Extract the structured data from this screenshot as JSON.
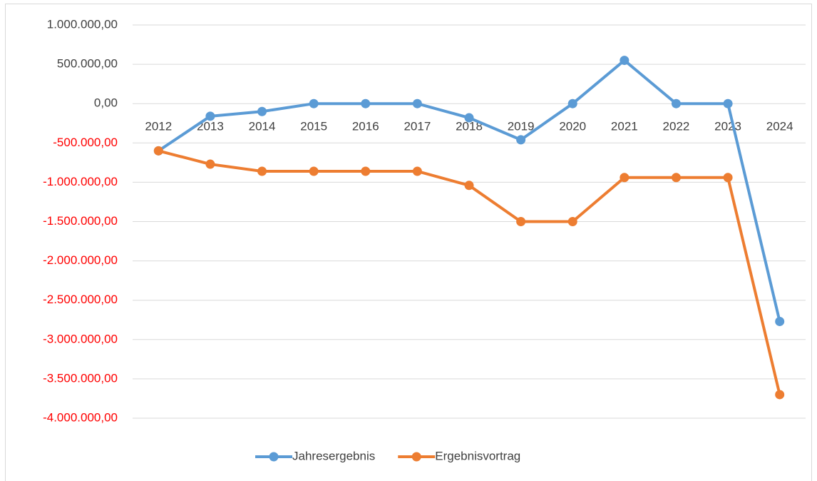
{
  "chart_data": {
    "type": "line",
    "categories": [
      "2012",
      "2013",
      "2014",
      "2015",
      "2016",
      "2017",
      "2018",
      "2019",
      "2020",
      "2021",
      "2022",
      "2023",
      "2024"
    ],
    "series": [
      {
        "name": "Jahresergebnis",
        "color": "#5b9bd5",
        "values": [
          -600000,
          -160000,
          -100000,
          0,
          0,
          0,
          -180000,
          -460000,
          0,
          550000,
          0,
          0,
          -2770000
        ]
      },
      {
        "name": "Ergebnisvortrag",
        "color": "#ed7d31",
        "values": [
          -600000,
          -770000,
          -860000,
          -860000,
          -860000,
          -860000,
          -1040000,
          -1500000,
          -1500000,
          -940000,
          -940000,
          -940000,
          -3700000
        ]
      }
    ],
    "ylim": [
      -4000000,
      1000000
    ],
    "yticks": [
      {
        "value": 1000000,
        "label": "1.000.000,00"
      },
      {
        "value": 500000,
        "label": "500.000,00"
      },
      {
        "value": 0,
        "label": "0,00"
      },
      {
        "value": -500000,
        "label": "-500.000,00"
      },
      {
        "value": -1000000,
        "label": "-1.000.000,00"
      },
      {
        "value": -1500000,
        "label": "-1.500.000,00"
      },
      {
        "value": -2000000,
        "label": "-2.000.000,00"
      },
      {
        "value": -2500000,
        "label": "-2.500.000,00"
      },
      {
        "value": -3000000,
        "label": "-3.000.000,00"
      },
      {
        "value": -3500000,
        "label": "-3.500.000,00"
      },
      {
        "value": -4000000,
        "label": "-4.000.000,00"
      }
    ],
    "grid": true,
    "negative_tick_color": "#ff0000",
    "legend": "bottom"
  }
}
